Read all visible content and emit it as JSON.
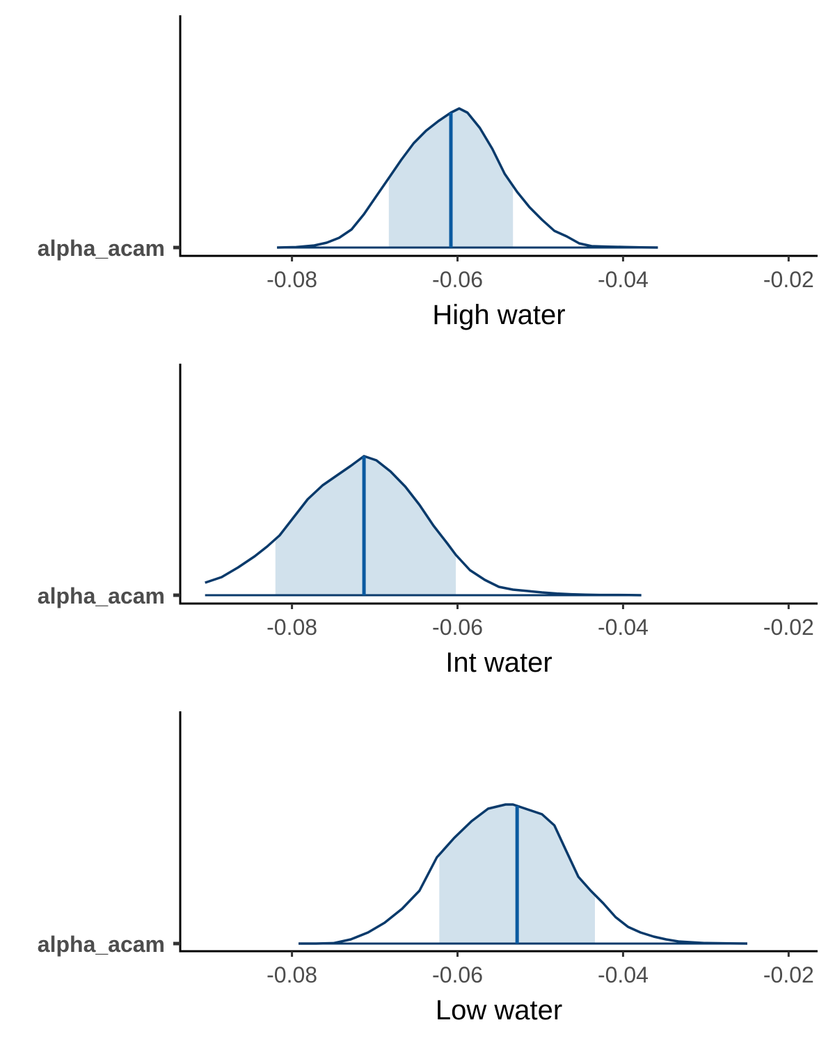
{
  "colors": {
    "density_line": "#0a3a6b",
    "median_line": "#0b5aa0",
    "interval_fill": "#d1e1ec",
    "axis": "#000000",
    "tick_text": "#4d4d4d"
  },
  "chart_data": [
    {
      "type": "area",
      "xlabel": "High water",
      "parameter": "alpha_acam",
      "xlim": [
        -0.0935,
        -0.0165
      ],
      "ticks": [
        -0.08,
        -0.06,
        -0.04,
        -0.02
      ],
      "tick_labels": [
        "-0.08",
        "-0.06",
        "-0.04",
        "-0.02"
      ],
      "median": -0.0608,
      "interval": [
        -0.0683,
        -0.0533
      ],
      "density": {
        "x": [
          -0.0818,
          -0.0795,
          -0.0773,
          -0.0758,
          -0.0743,
          -0.0728,
          -0.0713,
          -0.0698,
          -0.0683,
          -0.0668,
          -0.0653,
          -0.0638,
          -0.0623,
          -0.0608,
          -0.0598,
          -0.0588,
          -0.0573,
          -0.0558,
          -0.0543,
          -0.0528,
          -0.0513,
          -0.0498,
          -0.0483,
          -0.0468,
          -0.0453,
          -0.0438,
          -0.0418,
          -0.0398,
          -0.0378,
          -0.0358
        ],
        "y": [
          0.0,
          0.003,
          0.015,
          0.035,
          0.07,
          0.13,
          0.24,
          0.37,
          0.5,
          0.63,
          0.75,
          0.84,
          0.91,
          0.97,
          1.0,
          0.97,
          0.86,
          0.71,
          0.53,
          0.4,
          0.29,
          0.2,
          0.12,
          0.08,
          0.03,
          0.01,
          0.006,
          0.004,
          0.001,
          0.0
        ]
      }
    },
    {
      "type": "area",
      "xlabel": "Int water",
      "parameter": "alpha_acam",
      "xlim": [
        -0.0935,
        -0.0165
      ],
      "ticks": [
        -0.08,
        -0.06,
        -0.04,
        -0.02
      ],
      "tick_labels": [
        "-0.08",
        "-0.06",
        "-0.04",
        "-0.02"
      ],
      "median": -0.0713,
      "interval": [
        -0.082,
        -0.0602
      ],
      "density": {
        "x": [
          -0.0905,
          -0.0885,
          -0.0865,
          -0.0845,
          -0.083,
          -0.0815,
          -0.0798,
          -0.0781,
          -0.0763,
          -0.0746,
          -0.0729,
          -0.0713,
          -0.0698,
          -0.0681,
          -0.0663,
          -0.0646,
          -0.0629,
          -0.0612,
          -0.0602,
          -0.0585,
          -0.0567,
          -0.055,
          -0.0533,
          -0.0515,
          -0.0498,
          -0.048,
          -0.0463,
          -0.0445,
          -0.0428,
          -0.0411,
          -0.0393,
          -0.0378
        ],
        "y": [
          0.09,
          0.13,
          0.2,
          0.28,
          0.35,
          0.43,
          0.56,
          0.69,
          0.79,
          0.86,
          0.93,
          1.0,
          0.97,
          0.89,
          0.78,
          0.65,
          0.5,
          0.37,
          0.29,
          0.18,
          0.11,
          0.06,
          0.04,
          0.03,
          0.02,
          0.012,
          0.007,
          0.004,
          0.002,
          0.002,
          0.001,
          0.0
        ]
      }
    },
    {
      "type": "area",
      "xlabel": "Low water",
      "parameter": "alpha_acam",
      "xlim": [
        -0.0935,
        -0.0165
      ],
      "ticks": [
        -0.08,
        -0.06,
        -0.04,
        -0.02
      ],
      "tick_labels": [
        "-0.08",
        "-0.06",
        "-0.04",
        "-0.02"
      ],
      "median": -0.0528,
      "interval": [
        -0.0622,
        -0.0434
      ],
      "density": {
        "x": [
          -0.0792,
          -0.0771,
          -0.075,
          -0.0729,
          -0.0708,
          -0.0688,
          -0.0667,
          -0.0646,
          -0.0625,
          -0.0604,
          -0.0583,
          -0.0563,
          -0.0542,
          -0.0533,
          -0.0528,
          -0.0513,
          -0.0498,
          -0.0483,
          -0.0469,
          -0.0454,
          -0.0439,
          -0.0424,
          -0.0409,
          -0.0394,
          -0.0379,
          -0.0363,
          -0.0348,
          -0.0333,
          -0.0302,
          -0.0271,
          -0.025
        ],
        "y": [
          0.0,
          0.0,
          0.003,
          0.03,
          0.08,
          0.15,
          0.25,
          0.38,
          0.62,
          0.76,
          0.88,
          0.97,
          1.0,
          1.0,
          0.99,
          0.96,
          0.93,
          0.85,
          0.67,
          0.48,
          0.38,
          0.29,
          0.19,
          0.12,
          0.08,
          0.05,
          0.03,
          0.015,
          0.004,
          0.001,
          0.0
        ]
      }
    }
  ]
}
